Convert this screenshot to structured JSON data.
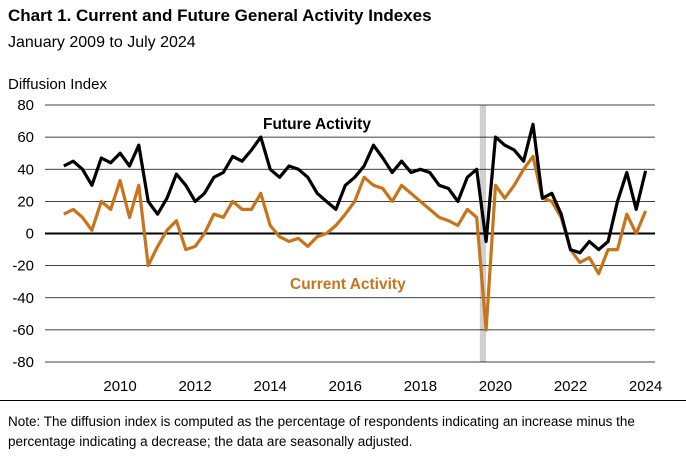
{
  "header": {
    "title": "Chart 1. Current and Future General Activity Indexes",
    "subtitle": "January 2009 to July 2024"
  },
  "footer": {
    "note": "Note: The diffusion index is computed as the percentage of respondents indicating an increase minus the percentage indicating a decrease; the data are seasonally adjusted."
  },
  "colors": {
    "future": "#000000",
    "current": "#c8741a",
    "recession": "#d0d0d0",
    "grid": "#000000"
  },
  "chart_data": {
    "type": "line",
    "title": "Chart 1. Current and Future General Activity Indexes",
    "subtitle": "January 2009 to July 2024",
    "ylabel": "Diffusion Index",
    "ylim": [
      -80,
      80
    ],
    "yticks": [
      80,
      60,
      40,
      20,
      0,
      -20,
      -40,
      -60,
      -80
    ],
    "xticks": [
      "2010",
      "2012",
      "2014",
      "2016",
      "2018",
      "2020",
      "2022",
      "2024"
    ],
    "x_range": [
      "2009-01",
      "2024-07"
    ],
    "grid": true,
    "shaded_period": [
      "2020-02",
      "2020-04"
    ],
    "series": [
      {
        "name": "Future Activity",
        "label_text": "Future Activity",
        "color": "#000000",
        "x": [
          "2009-01",
          "2009-04",
          "2009-07",
          "2009-10",
          "2010-01",
          "2010-04",
          "2010-07",
          "2010-10",
          "2011-01",
          "2011-04",
          "2011-07",
          "2011-10",
          "2012-01",
          "2012-04",
          "2012-07",
          "2012-10",
          "2013-01",
          "2013-04",
          "2013-07",
          "2013-10",
          "2014-01",
          "2014-04",
          "2014-07",
          "2014-10",
          "2015-01",
          "2015-04",
          "2015-07",
          "2015-10",
          "2016-01",
          "2016-04",
          "2016-07",
          "2016-10",
          "2017-01",
          "2017-04",
          "2017-07",
          "2017-10",
          "2018-01",
          "2018-04",
          "2018-07",
          "2018-10",
          "2019-01",
          "2019-04",
          "2019-07",
          "2019-10",
          "2020-01",
          "2020-04",
          "2020-07",
          "2020-10",
          "2021-01",
          "2021-04",
          "2021-07",
          "2021-10",
          "2022-01",
          "2022-04",
          "2022-07",
          "2022-10",
          "2023-01",
          "2023-04",
          "2023-07",
          "2023-10",
          "2024-01",
          "2024-04",
          "2024-07"
        ],
        "values": [
          42,
          45,
          40,
          30,
          47,
          44,
          50,
          42,
          55,
          20,
          12,
          22,
          37,
          30,
          20,
          25,
          35,
          38,
          48,
          45,
          52,
          60,
          40,
          35,
          42,
          40,
          35,
          25,
          20,
          15,
          30,
          35,
          42,
          55,
          47,
          38,
          45,
          38,
          40,
          38,
          30,
          28,
          20,
          35,
          40,
          -5,
          60,
          55,
          52,
          45,
          68,
          22,
          25,
          12,
          -10,
          -12,
          -5,
          -10,
          -5,
          20,
          38,
          15,
          39
        ]
      },
      {
        "name": "Current Activity",
        "label_text": "Current Activity",
        "color": "#c8741a",
        "x": [
          "2009-01",
          "2009-04",
          "2009-07",
          "2009-10",
          "2010-01",
          "2010-04",
          "2010-07",
          "2010-10",
          "2011-01",
          "2011-04",
          "2011-07",
          "2011-10",
          "2012-01",
          "2012-04",
          "2012-07",
          "2012-10",
          "2013-01",
          "2013-04",
          "2013-07",
          "2013-10",
          "2014-01",
          "2014-04",
          "2014-07",
          "2014-10",
          "2015-01",
          "2015-04",
          "2015-07",
          "2015-10",
          "2016-01",
          "2016-04",
          "2016-07",
          "2016-10",
          "2017-01",
          "2017-04",
          "2017-07",
          "2017-10",
          "2018-01",
          "2018-04",
          "2018-07",
          "2018-10",
          "2019-01",
          "2019-04",
          "2019-07",
          "2019-10",
          "2020-01",
          "2020-04",
          "2020-07",
          "2020-10",
          "2021-01",
          "2021-04",
          "2021-07",
          "2021-10",
          "2022-01",
          "2022-04",
          "2022-07",
          "2022-10",
          "2023-01",
          "2023-04",
          "2023-07",
          "2023-10",
          "2024-01",
          "2024-04",
          "2024-07"
        ],
        "values": [
          12,
          15,
          10,
          2,
          20,
          15,
          33,
          10,
          30,
          -20,
          -8,
          2,
          8,
          -10,
          -8,
          0,
          12,
          10,
          20,
          15,
          15,
          25,
          5,
          -2,
          -5,
          -3,
          -8,
          -2,
          0,
          5,
          12,
          20,
          35,
          30,
          28,
          20,
          30,
          25,
          20,
          15,
          10,
          8,
          5,
          15,
          10,
          -60,
          30,
          22,
          30,
          40,
          48,
          22,
          20,
          10,
          -10,
          -18,
          -15,
          -25,
          -10,
          -10,
          12,
          0,
          14
        ]
      }
    ]
  }
}
